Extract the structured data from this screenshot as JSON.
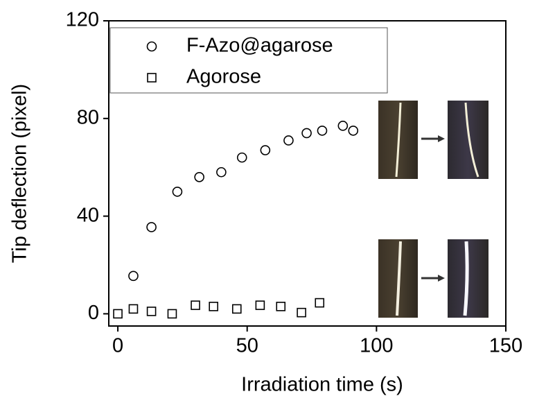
{
  "chart_data": {
    "type": "scatter",
    "x_label": "Irradiation time (s)",
    "y_label": "Tip deflection (pixel)",
    "xlim": [
      -3.5,
      150
    ],
    "ylim": [
      -5,
      120
    ],
    "xticks": [
      0,
      50,
      100,
      150
    ],
    "yticks": [
      0,
      40,
      80,
      120
    ],
    "legend": "upper left",
    "series": [
      {
        "name": "F-Azo@agarose",
        "marker": "circle",
        "color": "#000000",
        "x": [
          6,
          13,
          23,
          31.5,
          40,
          48,
          57,
          66,
          73,
          79,
          87,
          91
        ],
        "values": [
          15.5,
          35.5,
          50,
          56,
          58,
          64,
          67,
          71,
          74,
          75,
          77,
          75
        ]
      },
      {
        "name": "Agorose",
        "marker": "square",
        "color": "#000000",
        "x": [
          0,
          6,
          13,
          21,
          30,
          37,
          46,
          55,
          63,
          71,
          78
        ],
        "values": [
          0,
          2,
          1,
          0,
          3.5,
          3,
          2,
          3.5,
          3,
          0.5,
          4.5
        ]
      }
    ]
  }
}
